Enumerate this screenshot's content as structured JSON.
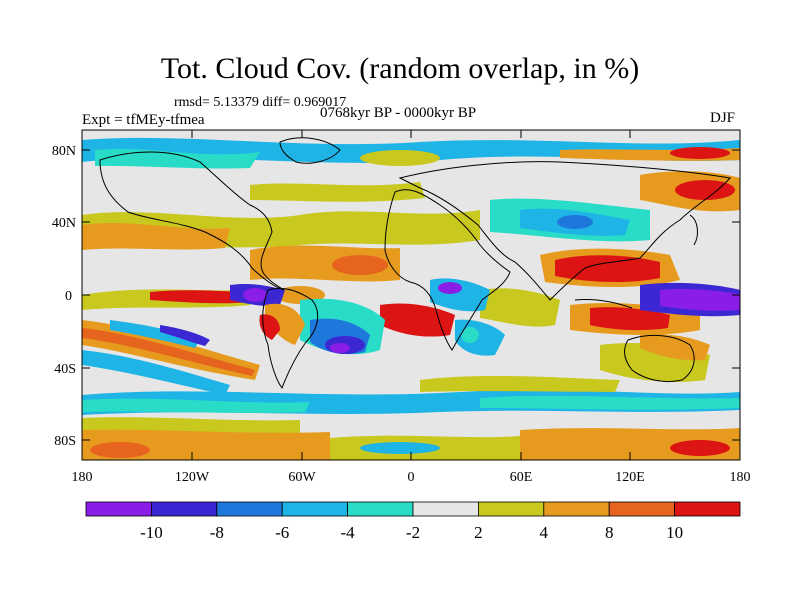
{
  "title": "Tot. Cloud Cov. (random overlap, in %)",
  "stats": "rmsd= 5.13379 diff= 0.969017",
  "experiment": "Expt = tfMEy-tfmea",
  "period": "0768kyr BP - 0000kyr BP",
  "season": "DJF",
  "lat_labels": [
    "80N",
    "40N",
    "0",
    "40S",
    "80S"
  ],
  "lon_labels": [
    "180",
    "120W",
    "60W",
    "0",
    "60E",
    "120E",
    "180"
  ],
  "colorbar": {
    "labels": [
      "-10",
      "-8",
      "-6",
      "-4",
      "-2",
      "2",
      "4",
      "8",
      "10"
    ],
    "colors": [
      "#8a1ee6",
      "#3c28d2",
      "#1e78dc",
      "#1eb4e6",
      "#28dcc8",
      "#e6e6e6",
      "#c8c81e",
      "#e69b1e",
      "#e6641e",
      "#dc1414"
    ]
  }
}
